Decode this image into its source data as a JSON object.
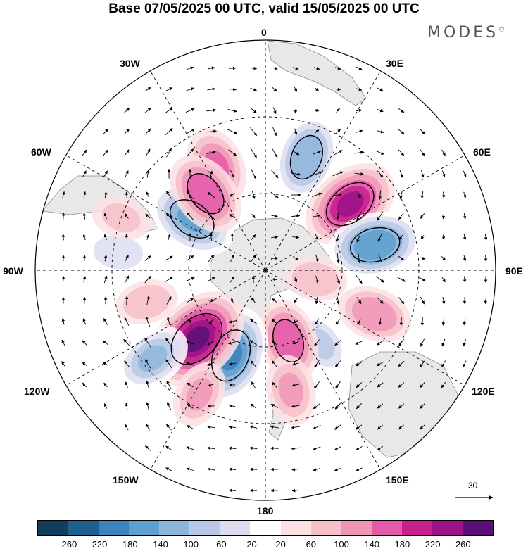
{
  "title": "Base 07/05/2025 00 UTC, valid 15/05/2025 00 UTC",
  "brand": "MODES",
  "brand_mark": "©",
  "longitude_labels": {
    "lon_0": "0",
    "lon_30e": "30E",
    "lon_60e": "60E",
    "lon_90e": "90E",
    "lon_120e": "120E",
    "lon_150e": "150E",
    "lon_180": "180",
    "lon_150w": "150W",
    "lon_120w": "120W",
    "lon_90w": "90W",
    "lon_60w": "60W",
    "lon_30w": "30W"
  },
  "vector_scale_label": "30",
  "colorbar": {
    "colors": [
      "#123d5c",
      "#1f5f8e",
      "#3a84bd",
      "#5d9fcf",
      "#8db6dc",
      "#b9c8e6",
      "#dcdef0",
      "#ffffff",
      "#fbe0e3",
      "#f7bfc9",
      "#f195b7",
      "#e35aa8",
      "#c71f8d",
      "#9a1287",
      "#5a1078"
    ],
    "tick_labels": [
      "-260",
      "-220",
      "-180",
      "-140",
      "-100",
      "-60",
      "-20",
      "20",
      "60",
      "100",
      "140",
      "180",
      "220",
      "260"
    ]
  },
  "anomaly_centers": [
    {
      "lon": 20,
      "colat": 47,
      "value": -150
    },
    {
      "lon": 52,
      "colat": 42,
      "value": 200
    },
    {
      "lon": 77,
      "colat": 44,
      "value": -180
    },
    {
      "lon": 112,
      "colat": 46,
      "value": 110
    },
    {
      "lon": 143,
      "colat": 36,
      "value": -80
    },
    {
      "lon": 162,
      "colat": 29,
      "value": 140
    },
    {
      "lon": 168,
      "colat": 48,
      "value": 90
    },
    {
      "lon": -158,
      "colat": 36,
      "value": -200
    },
    {
      "lon": -135,
      "colat": 38,
      "value": 240
    },
    {
      "lon": -128,
      "colat": 56,
      "value": -120
    },
    {
      "lon": -152,
      "colat": 55,
      "value": 80
    },
    {
      "lon": -55,
      "colat": 35,
      "value": -170
    },
    {
      "lon": -25,
      "colat": 45,
      "value": 120
    },
    {
      "lon": -38,
      "colat": 38,
      "value": 150
    },
    {
      "lon": 100,
      "colat": 20,
      "value": 60
    },
    {
      "lon": -83,
      "colat": 58,
      "value": -70
    },
    {
      "lon": -70,
      "colat": 60,
      "value": 50
    },
    {
      "lon": -105,
      "colat": 48,
      "value": 60
    }
  ]
}
